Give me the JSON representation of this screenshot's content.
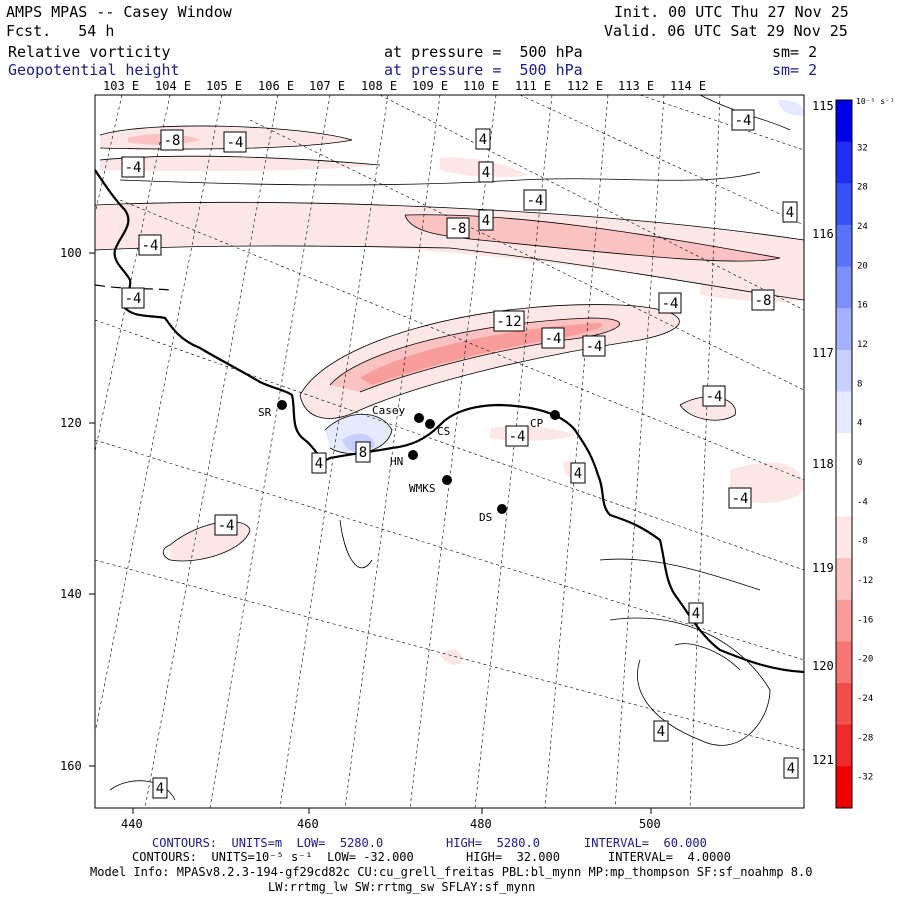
{
  "header": {
    "title": "AMPS MPAS -- Casey Window",
    "forecast": "Fcst.   54 h",
    "init": "Init. 00 UTC Thu 27 Nov 25",
    "valid": "Valid. 06 UTC Sat 29 Nov 25",
    "field1": {
      "name": "Relative vorticity",
      "pressure": "at pressure =  500 hPa",
      "sm": "sm= 2"
    },
    "field2": {
      "name": "Geopotential height",
      "pressure": "at pressure =  500 hPa",
      "sm": "sm= 2"
    }
  },
  "top_lon_labels": [
    "103 E",
    "104 E",
    "105 E",
    "106 E",
    "107 E",
    "108 E",
    "109 E",
    "110 E",
    "111 E",
    "112 E",
    "113 E",
    "114 E"
  ],
  "right_lon_labels": [
    "115 E",
    "116 E",
    "117 E",
    "118 E",
    "119 E",
    "120 E",
    "121 E"
  ],
  "x_ticks": [
    "440",
    "460",
    "480",
    "500"
  ],
  "y_ticks": [
    "100",
    "120",
    "140",
    "160"
  ],
  "colorbar": {
    "unit": "10⁻⁵ s⁻¹",
    "labels": [
      "32",
      "28",
      "24",
      "20",
      "16",
      "12",
      "8",
      "4",
      "0",
      "-4",
      "-8",
      "-12",
      "-16",
      "-20",
      "-24",
      "-28",
      "-32"
    ],
    "colors": [
      "#0000e6",
      "#1f2ef2",
      "#3a52f5",
      "#5a72f7",
      "#7d90f9",
      "#a3b0fb",
      "#c7cffc",
      "#e6eafe",
      "#ffffff",
      "#ffffff",
      "#fde6e6",
      "#fbc2c2",
      "#f89c9c",
      "#f67676",
      "#f24e4e",
      "#ef2a2a",
      "#ec0000"
    ]
  },
  "stations": [
    {
      "name": "SR"
    },
    {
      "name": "Casey"
    },
    {
      "name": "CS"
    },
    {
      "name": "HN"
    },
    {
      "name": "WMKS"
    },
    {
      "name": "CP"
    },
    {
      "name": "DS"
    }
  ],
  "contour_labels": [
    "-8",
    "-4",
    "4",
    "-4",
    "4",
    "-4",
    "-4",
    "4",
    "-8",
    "-4",
    "-4",
    "-4",
    "-8",
    "-12",
    "-4",
    "-4",
    "-4",
    "-4",
    "8",
    "4",
    "4",
    "-4",
    "-4",
    "4",
    "4",
    "4",
    "4",
    "4"
  ],
  "footer": {
    "line1": {
      "a": "CONTOURS:  UNITS=m  LOW=  5280.0",
      "b": "HIGH=  5280.0",
      "c": "INTERVAL=  60.000"
    },
    "line2": {
      "a": "CONTOURS:  UNITS=10⁻⁵ s⁻¹  LOW= -32.000",
      "b": "HIGH=  32.000",
      "c": "INTERVAL=  4.0000"
    },
    "line3": "Model Info: MPASv8.2.3-194-gf29cd82c CU:cu_grell_freitas PBL:bl_mynn MP:mp_thompson SF:sf_noahmp 8.0",
    "line4": "LW:rrtmg_lw SW:rrtmg_sw SFLAY:sf_mynn"
  }
}
